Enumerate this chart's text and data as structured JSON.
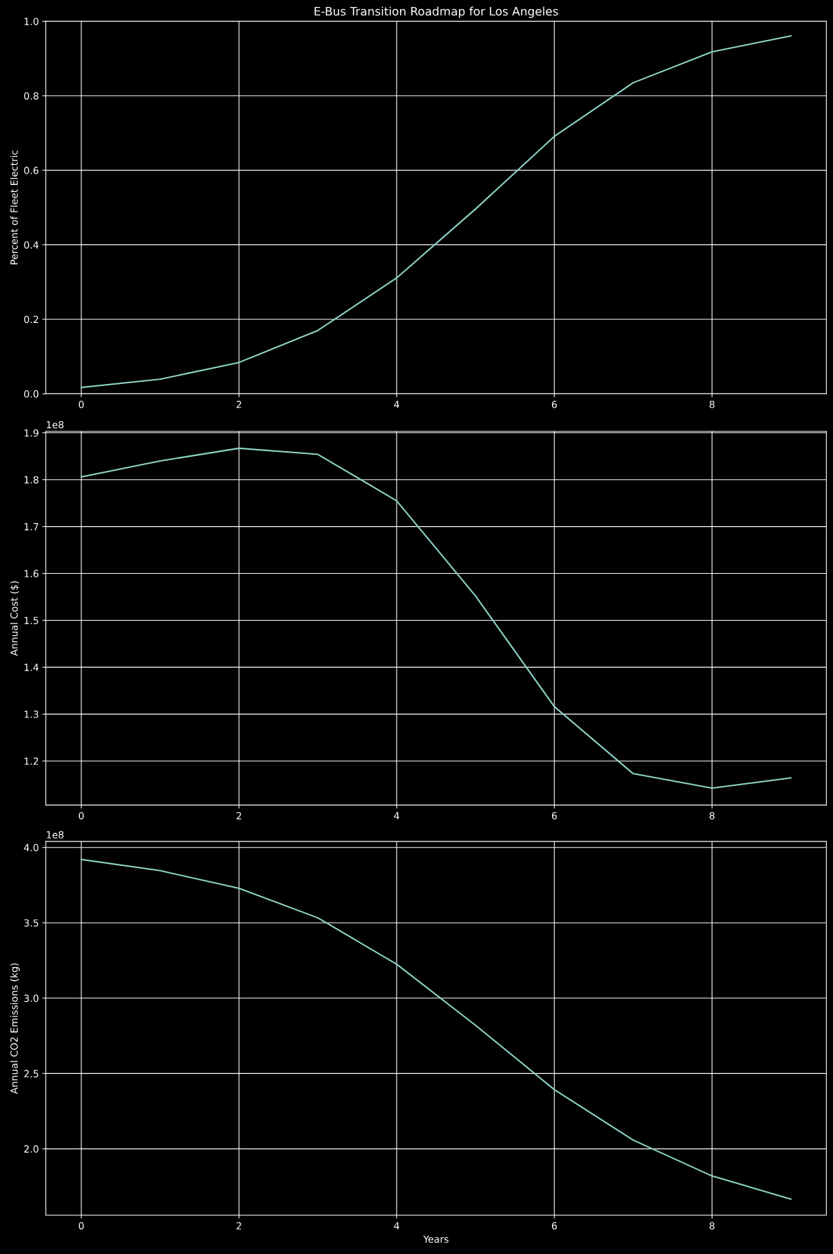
{
  "chart_data": [
    {
      "type": "line",
      "title": "E-Bus Transition Roadmap for Los Angeles",
      "ylabel": "Percent of Fleet Electric",
      "x": [
        0,
        1,
        2,
        3,
        4,
        5,
        6,
        7,
        8,
        9
      ],
      "series": [
        {
          "color": "#8dd3c7",
          "values": [
            0.017,
            0.039,
            0.084,
            0.17,
            0.311,
            0.496,
            0.691,
            0.835,
            0.918,
            0.961
          ]
        }
      ],
      "xlim": [
        -0.45,
        9.45
      ],
      "xticks": [
        0,
        2,
        4,
        6,
        8
      ],
      "ylim": [
        0,
        1.0
      ],
      "yticks": [
        {
          "value": 0,
          "label": "0.0"
        },
        0.2,
        0.4,
        0.6,
        0.8,
        {
          "value": 1,
          "label": "1.0"
        }
      ],
      "grid": true
    },
    {
      "type": "line",
      "ylabel": "Annual Cost ($)",
      "annotations": [
        "1e8"
      ],
      "x": [
        0,
        1,
        2,
        3,
        4,
        5,
        6,
        7,
        8,
        9
      ],
      "series": [
        {
          "color": "#8dd3c7",
          "values": [
            1.806,
            1.84,
            1.867,
            1.854,
            1.755,
            1.552,
            1.316,
            1.173,
            1.142,
            1.164
          ]
        }
      ],
      "xlim": [
        -0.45,
        9.45
      ],
      "xticks": [
        0,
        2,
        4,
        6,
        8
      ],
      "ylim": [
        1.106,
        1.903
      ],
      "yticks": [
        1.2,
        1.3,
        1.4,
        1.5,
        1.6,
        1.7,
        1.8,
        1.9
      ],
      "grid": true
    },
    {
      "type": "line",
      "xlabel": "Years",
      "ylabel": "Annual CO2 Emissions (kg)",
      "annotations": [
        "1e8"
      ],
      "x": [
        0,
        1,
        2,
        3,
        4,
        5,
        6,
        7,
        8,
        9
      ],
      "series": [
        {
          "color": "#8dd3c7",
          "values": [
            3.92,
            3.846,
            3.729,
            3.533,
            3.225,
            2.82,
            2.393,
            2.058,
            1.82,
            1.666
          ]
        }
      ],
      "xlim": [
        -0.45,
        9.45
      ],
      "xticks": [
        0,
        2,
        4,
        6,
        8
      ],
      "ylim": [
        1.56,
        4.04
      ],
      "yticks": [
        {
          "value": 2,
          "label": "2.0"
        },
        2.5,
        {
          "value": 3,
          "label": "3.0"
        },
        3.5,
        {
          "value": 4,
          "label": "4.0"
        }
      ],
      "grid": true
    }
  ]
}
